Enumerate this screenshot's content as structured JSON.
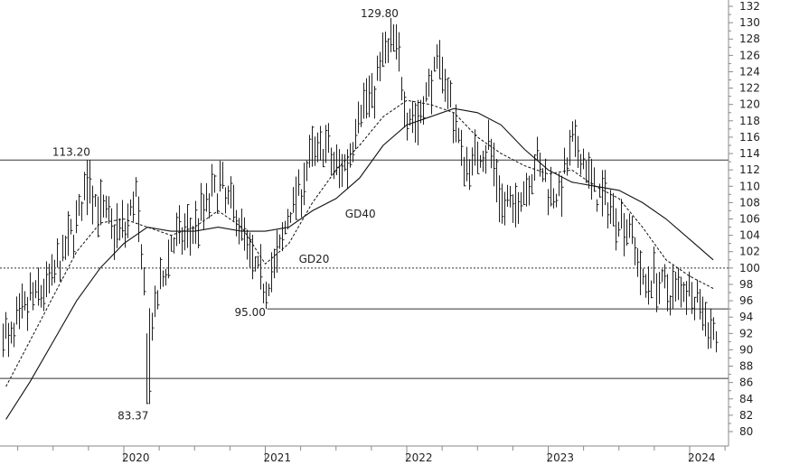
{
  "chart_data": {
    "type": "ohlc",
    "y_axis": {
      "min": 79,
      "max": 133,
      "side": "right",
      "ticks": [
        80,
        82,
        84,
        86,
        88,
        90,
        92,
        94,
        96,
        98,
        100,
        102,
        104,
        106,
        108,
        110,
        112,
        114,
        116,
        118,
        120,
        122,
        124,
        126,
        128,
        130,
        132
      ]
    },
    "x_axis": {
      "start": "2019-03",
      "end": "2024-04",
      "labels": [
        {
          "label": "2020",
          "date": "2020-01"
        },
        {
          "label": "2021",
          "date": "2021-01"
        },
        {
          "label": "2022",
          "date": "2022-01"
        },
        {
          "label": "2023",
          "date": "2023-01"
        },
        {
          "label": "2024",
          "date": "2024-01"
        }
      ]
    },
    "grid": false,
    "reference_lines": [
      {
        "value": 113.2,
        "style": "solid"
      },
      {
        "value": 100,
        "style": "dotted"
      },
      {
        "value": 95,
        "style": "solid",
        "from": "2021-01"
      },
      {
        "value": 86.5,
        "style": "solid"
      }
    ],
    "annotations": [
      {
        "text": "113.20",
        "date": "2019-10",
        "value": 113.2
      },
      {
        "text": "129.80",
        "date": "2021-12",
        "value": 129.8
      },
      {
        "text": "95.00",
        "date": "2021-01",
        "value": 95.0
      },
      {
        "text": "83.37",
        "date": "2020-03",
        "value": 83.37
      },
      {
        "text": "GD40",
        "date": "2021-08",
        "value": 106.5
      },
      {
        "text": "GD20",
        "date": "2021-04",
        "value": 101.0
      }
    ],
    "series": [
      {
        "name": "GD40",
        "style": "solid",
        "points": [
          [
            "2019-03",
            81.5
          ],
          [
            "2019-05",
            86
          ],
          [
            "2019-07",
            91
          ],
          [
            "2019-09",
            96
          ],
          [
            "2019-11",
            100
          ],
          [
            "2020-01",
            103
          ],
          [
            "2020-03",
            105
          ],
          [
            "2020-05",
            104.5
          ],
          [
            "2020-07",
            104.5
          ],
          [
            "2020-09",
            105
          ],
          [
            "2020-11",
            104.5
          ],
          [
            "2021-01",
            104.5
          ],
          [
            "2021-03",
            105
          ],
          [
            "2021-05",
            107
          ],
          [
            "2021-07",
            108.5
          ],
          [
            "2021-09",
            111
          ],
          [
            "2021-11",
            115
          ],
          [
            "2022-01",
            117.5
          ],
          [
            "2022-03",
            118.5
          ],
          [
            "2022-05",
            119.5
          ],
          [
            "2022-07",
            119
          ],
          [
            "2022-09",
            117.5
          ],
          [
            "2022-11",
            114.5
          ],
          [
            "2023-01",
            112
          ],
          [
            "2023-03",
            110.5
          ],
          [
            "2023-05",
            110
          ],
          [
            "2023-07",
            109.5
          ],
          [
            "2023-09",
            108
          ],
          [
            "2023-11",
            106
          ],
          [
            "2024-01",
            103.5
          ],
          [
            "2024-03",
            101
          ]
        ]
      },
      {
        "name": "GD20",
        "style": "dashed",
        "points": [
          [
            "2019-03",
            85.5
          ],
          [
            "2019-05",
            91
          ],
          [
            "2019-07",
            96.5
          ],
          [
            "2019-09",
            102
          ],
          [
            "2019-11",
            105.5
          ],
          [
            "2020-01",
            106
          ],
          [
            "2020-03",
            105
          ],
          [
            "2020-05",
            104
          ],
          [
            "2020-07",
            105
          ],
          [
            "2020-09",
            107
          ],
          [
            "2020-11",
            105
          ],
          [
            "2021-01",
            100.5
          ],
          [
            "2021-03",
            103
          ],
          [
            "2021-05",
            108
          ],
          [
            "2021-07",
            112
          ],
          [
            "2021-09",
            115
          ],
          [
            "2021-11",
            118.5
          ],
          [
            "2022-01",
            120.5
          ],
          [
            "2022-03",
            120
          ],
          [
            "2022-05",
            119
          ],
          [
            "2022-07",
            116
          ],
          [
            "2022-09",
            114
          ],
          [
            "2022-11",
            112.5
          ],
          [
            "2023-01",
            111.5
          ],
          [
            "2023-03",
            112
          ],
          [
            "2023-05",
            110
          ],
          [
            "2023-07",
            108.5
          ],
          [
            "2023-09",
            105
          ],
          [
            "2023-11",
            101
          ],
          [
            "2024-01",
            99
          ],
          [
            "2024-03",
            97.5
          ]
        ]
      }
    ],
    "price_path": [
      [
        "2019-03",
        90
      ],
      [
        "2019-04",
        93
      ],
      [
        "2019-05",
        96
      ],
      [
        "2019-06",
        97
      ],
      [
        "2019-07",
        99
      ],
      [
        "2019-08",
        102
      ],
      [
        "2019-09",
        106
      ],
      [
        "2019-10",
        110
      ],
      [
        "2019-11",
        107
      ],
      [
        "2019-12",
        105
      ],
      [
        "2020-01",
        104.5
      ],
      [
        "2020-02",
        109
      ],
      [
        "2020-03",
        91
      ],
      [
        "2020-04",
        97
      ],
      [
        "2020-05",
        103
      ],
      [
        "2020-06",
        104
      ],
      [
        "2020-07",
        105
      ],
      [
        "2020-08",
        108
      ],
      [
        "2020-09",
        110
      ],
      [
        "2020-10",
        108
      ],
      [
        "2020-11",
        105
      ],
      [
        "2020-12",
        100
      ],
      [
        "2021-01",
        98
      ],
      [
        "2021-02",
        101
      ],
      [
        "2021-03",
        107
      ],
      [
        "2021-04",
        110
      ],
      [
        "2021-05",
        114
      ],
      [
        "2021-06",
        115
      ],
      [
        "2021-07",
        112
      ],
      [
        "2021-08",
        113
      ],
      [
        "2021-09",
        120
      ],
      [
        "2021-10",
        121
      ],
      [
        "2021-11",
        126
      ],
      [
        "2021-12",
        128
      ],
      [
        "2022-01",
        119
      ],
      [
        "2022-02",
        118
      ],
      [
        "2022-03",
        123
      ],
      [
        "2022-04",
        125
      ],
      [
        "2022-05",
        118
      ],
      [
        "2022-06",
        112
      ],
      [
        "2022-07",
        114
      ],
      [
        "2022-08",
        115
      ],
      [
        "2022-09",
        108
      ],
      [
        "2022-10",
        107
      ],
      [
        "2022-11",
        110
      ],
      [
        "2022-12",
        113
      ],
      [
        "2023-01",
        110
      ],
      [
        "2023-02",
        109
      ],
      [
        "2023-03",
        115
      ],
      [
        "2023-04",
        113
      ],
      [
        "2023-05",
        109
      ],
      [
        "2023-06",
        108
      ],
      [
        "2023-07",
        106
      ],
      [
        "2023-08",
        105
      ],
      [
        "2023-09",
        98
      ],
      [
        "2023-10",
        99
      ],
      [
        "2023-11",
        97
      ],
      [
        "2023-12",
        97.5
      ],
      [
        "2024-01",
        98
      ],
      [
        "2024-02",
        95
      ],
      [
        "2024-03",
        92
      ]
    ],
    "extremes": [
      {
        "date": "2019-10",
        "value": 113.2
      },
      {
        "date": "2020-03",
        "value": 83.37
      },
      {
        "date": "2021-12",
        "value": 129.8
      },
      {
        "date": "2021-01",
        "value": 95.0
      },
      {
        "date": "2024-03",
        "value": 91.2
      }
    ]
  }
}
